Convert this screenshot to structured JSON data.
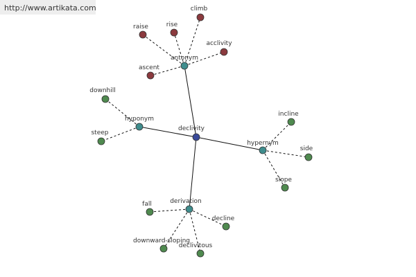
{
  "watermark": "http://www.artikata.com",
  "nodes": [
    {
      "label": "declivity"
    },
    {
      "label": "antonym"
    },
    {
      "label": "hyponym"
    },
    {
      "label": "hypernym"
    },
    {
      "label": "derivation"
    },
    {
      "label": "climb"
    },
    {
      "label": "rise"
    },
    {
      "label": "raise"
    },
    {
      "label": "acclivity"
    },
    {
      "label": "ascent"
    },
    {
      "label": "downhill"
    },
    {
      "label": "steep"
    },
    {
      "label": "incline"
    },
    {
      "label": "side"
    },
    {
      "label": "slope"
    },
    {
      "label": "fall"
    },
    {
      "label": "decline"
    },
    {
      "label": "downward-sloping"
    },
    {
      "label": "declivitous"
    }
  ]
}
